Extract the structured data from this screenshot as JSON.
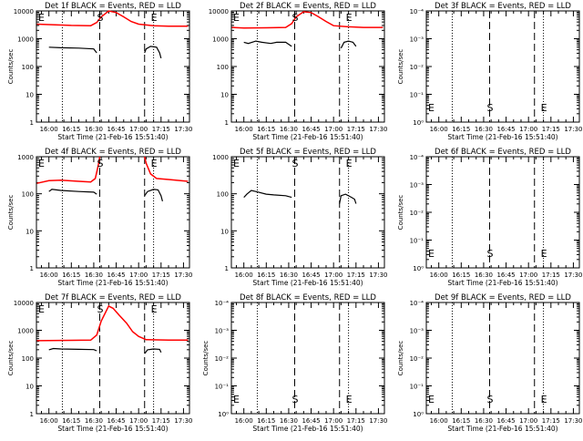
{
  "chart_data": [
    {
      "type": "line",
      "title": "Det 1f BLACK = Events, RED = LLD",
      "ylabel": "Counts/sec",
      "xlabel": "Start Time (21-Feb-16 15:51:40)",
      "x_ticks": [
        "16:00",
        "16:15",
        "16:30",
        "16:45",
        "17:00",
        "17:15",
        "17:30"
      ],
      "xlim": [
        "15:51:40",
        "17:34"
      ],
      "yscale": "log",
      "ylim": [
        1,
        15000
      ],
      "y_ticks": [
        "1",
        "10",
        "100",
        "1000",
        "10000"
      ],
      "markers": [
        {
          "label": "E",
          "at": "15:51:40"
        },
        {
          "label": "S",
          "at": "16:34"
        },
        {
          "label": "E",
          "at": "17:10"
        }
      ],
      "dashed_lines": [
        "16:34",
        "17:04"
      ],
      "dotted_lines": [
        "16:09",
        "17:10"
      ],
      "series": [
        {
          "color": "#ff0000",
          "points": [
            [
              "15:52",
              4800
            ],
            [
              "16:00",
              4600
            ],
            [
              "16:15",
              4300
            ],
            [
              "16:28",
              4200
            ],
            [
              "16:32",
              5500
            ],
            [
              "16:35",
              9000
            ],
            [
              "16:40",
              15000
            ],
            [
              "16:45",
              13000
            ],
            [
              "16:50",
              9000
            ],
            [
              "16:55",
              6000
            ],
            [
              "17:00",
              4800
            ],
            [
              "17:10",
              4200
            ],
            [
              "17:20",
              4000
            ],
            [
              "17:33",
              4000
            ]
          ]
        },
        {
          "color": "#000000",
          "segments": [
            [
              [
                "16:00",
                650
              ],
              [
                "16:08",
                620
              ],
              [
                "16:20",
                600
              ],
              [
                "16:30",
                560
              ],
              [
                "16:32",
                400
              ]
            ],
            [
              [
                "17:04",
                400
              ],
              [
                "17:05",
                560
              ],
              [
                "17:08",
                700
              ],
              [
                "17:12",
                650
              ],
              [
                "17:14",
                400
              ],
              [
                "17:15",
                250
              ]
            ]
          ]
        }
      ]
    },
    {
      "type": "line",
      "title": "Det 2f BLACK = Events, RED = LLD",
      "ylabel": "",
      "xlabel": "Start Time (21-Feb-16 15:51:40)",
      "x_ticks": [
        "16:00",
        "16:15",
        "16:30",
        "16:45",
        "17:00",
        "17:15",
        "17:30"
      ],
      "xlim": [
        "15:51:40",
        "17:34"
      ],
      "yscale": "log",
      "ylim": [
        1,
        15000
      ],
      "y_ticks": [
        "1",
        "10",
        "100",
        "1000",
        "10000"
      ],
      "markers": [
        {
          "label": "E",
          "at": "15:51:40"
        },
        {
          "label": "S",
          "at": "16:34"
        },
        {
          "label": "E",
          "at": "17:10"
        }
      ],
      "dashed_lines": [
        "16:34",
        "17:04"
      ],
      "dotted_lines": [
        "16:09",
        "17:10"
      ],
      "series": [
        {
          "color": "#ff0000",
          "points": [
            [
              "15:52",
              3600
            ],
            [
              "16:00",
              3400
            ],
            [
              "16:15",
              3500
            ],
            [
              "16:28",
              3600
            ],
            [
              "16:32",
              5000
            ],
            [
              "16:35",
              9000
            ],
            [
              "16:40",
              14000
            ],
            [
              "16:45",
              13000
            ],
            [
              "16:50",
              9000
            ],
            [
              "16:55",
              6000
            ],
            [
              "17:00",
              4200
            ],
            [
              "17:10",
              3800
            ],
            [
              "17:20",
              3600
            ],
            [
              "17:33",
              3600
            ]
          ]
        },
        {
          "color": "#000000",
          "segments": [
            [
              [
                "16:00",
                1000
              ],
              [
                "16:03",
                900
              ],
              [
                "16:08",
                1100
              ],
              [
                "16:12",
                1000
              ],
              [
                "16:18",
                900
              ],
              [
                "16:22",
                1000
              ],
              [
                "16:28",
                1000
              ],
              [
                "16:32",
                700
              ]
            ],
            [
              [
                "17:05",
                600
              ],
              [
                "17:07",
                1000
              ],
              [
                "17:10",
                1100
              ],
              [
                "17:13",
                1000
              ],
              [
                "17:15",
                700
              ]
            ]
          ]
        }
      ]
    },
    {
      "type": "line",
      "title": "Det 3f BLACK = Events, RED = LLD",
      "ylabel": "Counts/sec",
      "xlabel": "Start Time (21-Feb-16 15:51:40)",
      "x_ticks": [
        "16:00",
        "16:15",
        "16:30",
        "16:45",
        "17:00",
        "17:15",
        "17:30"
      ],
      "xlim": [
        "15:51:40",
        "17:34"
      ],
      "yscale": "log",
      "ylim": [
        1,
        0.0001
      ],
      "y_ticks": [
        "10⁰",
        "10⁻¹",
        "10⁻²",
        "10⁻³",
        "10⁻⁴"
      ],
      "markers": [
        {
          "label": "E",
          "at": "15:51:40"
        },
        {
          "label": "S",
          "at": "16:34"
        },
        {
          "label": "E",
          "at": "17:10"
        }
      ],
      "dashed_lines": [
        "16:34",
        "17:04"
      ],
      "dotted_lines": [
        "16:09",
        "17:10"
      ],
      "series": []
    },
    {
      "type": "line",
      "title": "Det 4f BLACK = Events, RED = LLD",
      "ylabel": "Counts/sec",
      "xlabel": "Start Time (21-Feb-16 15:51:40)",
      "x_ticks": [
        "16:00",
        "16:15",
        "16:30",
        "16:45",
        "17:00",
        "17:15",
        "17:30"
      ],
      "xlim": [
        "15:51:40",
        "17:34"
      ],
      "yscale": "log",
      "ylim": [
        1,
        1200
      ],
      "y_ticks": [
        "1",
        "10",
        "100",
        "1000"
      ],
      "markers": [
        {
          "label": "E",
          "at": "15:51:40"
        },
        {
          "label": "S",
          "at": "16:34"
        },
        {
          "label": "E",
          "at": "17:10"
        }
      ],
      "dashed_lines": [
        "16:34",
        "17:04"
      ],
      "dotted_lines": [
        "16:09",
        "17:10"
      ],
      "series": [
        {
          "color": "#ff0000",
          "points": [
            [
              "15:52",
              220
            ],
            [
              "16:00",
              260
            ],
            [
              "16:08",
              270
            ],
            [
              "16:20",
              250
            ],
            [
              "16:28",
              240
            ],
            [
              "16:31",
              300
            ],
            [
              "16:33",
              700
            ],
            [
              "16:34",
              1200
            ]
          ]
        },
        {
          "color": "#ff0000",
          "points": [
            [
              "17:04",
              1200
            ],
            [
              "17:05",
              800
            ],
            [
              "17:08",
              400
            ],
            [
              "17:12",
              300
            ],
            [
              "17:20",
              280
            ],
            [
              "17:33",
              250
            ]
          ]
        },
        {
          "color": "#000000",
          "segments": [
            [
              [
                "16:00",
                130
              ],
              [
                "16:02",
                150
              ],
              [
                "16:08",
                140
              ],
              [
                "16:20",
                130
              ],
              [
                "16:30",
                125
              ],
              [
                "16:32",
                110
              ]
            ],
            [
              [
                "17:04",
                100
              ],
              [
                "17:06",
                130
              ],
              [
                "17:10",
                150
              ],
              [
                "17:13",
                145
              ],
              [
                "17:15",
                100
              ],
              [
                "17:16",
                70
              ]
            ]
          ]
        }
      ]
    },
    {
      "type": "line",
      "title": "Det 5f BLACK = Events, RED = LLD",
      "ylabel": "",
      "xlabel": "Start Time (21-Feb-16 15:51:40)",
      "x_ticks": [
        "16:00",
        "16:15",
        "16:30",
        "16:45",
        "17:00",
        "17:15",
        "17:30"
      ],
      "xlim": [
        "15:51:40",
        "17:34"
      ],
      "yscale": "log",
      "ylim": [
        1,
        1200
      ],
      "y_ticks": [
        "1",
        "10",
        "100",
        "1000"
      ],
      "markers": [
        {
          "label": "E",
          "at": "15:51:40"
        },
        {
          "label": "S",
          "at": "16:34"
        },
        {
          "label": "E",
          "at": "17:10"
        }
      ],
      "dashed_lines": [
        "16:34",
        "17:04"
      ],
      "dotted_lines": [
        "16:09",
        "17:10"
      ],
      "series": [
        {
          "color": "#000000",
          "segments": [
            [
              [
                "16:00",
                90
              ],
              [
                "16:02",
                110
              ],
              [
                "16:05",
                140
              ],
              [
                "16:08",
                130
              ],
              [
                "16:15",
                110
              ],
              [
                "16:20",
                105
              ],
              [
                "16:28",
                100
              ],
              [
                "16:32",
                90
              ]
            ],
            [
              [
                "17:04",
                60
              ],
              [
                "17:05",
                100
              ],
              [
                "17:08",
                110
              ],
              [
                "17:12",
                90
              ],
              [
                "17:14",
                80
              ],
              [
                "17:15",
                60
              ]
            ]
          ]
        }
      ]
    },
    {
      "type": "line",
      "title": "Det 6f BLACK = Events, RED = LLD",
      "ylabel": "Counts/sec",
      "xlabel": "Start Time (21-Feb-16 15:51:40)",
      "x_ticks": [
        "16:00",
        "16:15",
        "16:30",
        "16:45",
        "17:00",
        "17:15",
        "17:30"
      ],
      "xlim": [
        "15:51:40",
        "17:34"
      ],
      "yscale": "log",
      "ylim": [
        1,
        0.0001
      ],
      "y_ticks": [
        "10⁰",
        "10⁻¹",
        "10⁻²",
        "10⁻³",
        "10⁻⁴"
      ],
      "markers": [
        {
          "label": "E",
          "at": "15:51:40"
        },
        {
          "label": "S",
          "at": "16:34"
        },
        {
          "label": "E",
          "at": "17:10"
        }
      ],
      "dashed_lines": [
        "16:34",
        "17:04"
      ],
      "dotted_lines": [
        "16:09",
        "17:10"
      ],
      "series": []
    },
    {
      "type": "line",
      "title": "Det 7f BLACK = Events, RED = LLD",
      "ylabel": "Counts/sec",
      "xlabel": "Start Time (21-Feb-16 15:51:40)",
      "x_ticks": [
        "16:00",
        "16:15",
        "16:30",
        "16:45",
        "17:00",
        "17:15",
        "17:30"
      ],
      "xlim": [
        "15:51:40",
        "17:34"
      ],
      "yscale": "log",
      "ylim": [
        1,
        15000
      ],
      "y_ticks": [
        "1",
        "10",
        "100",
        "1000",
        "10000"
      ],
      "markers": [
        {
          "label": "E",
          "at": "15:51:40"
        },
        {
          "label": "S",
          "at": "16:34"
        },
        {
          "label": "E",
          "at": "17:10"
        }
      ],
      "dashed_lines": [
        "16:34",
        "17:04"
      ],
      "dotted_lines": [
        "16:09",
        "17:10"
      ],
      "series": [
        {
          "color": "#ff0000",
          "points": [
            [
              "15:52",
              550
            ],
            [
              "16:00",
              560
            ],
            [
              "16:15",
              570
            ],
            [
              "16:28",
              580
            ],
            [
              "16:32",
              900
            ],
            [
              "16:35",
              3000
            ],
            [
              "16:40",
              11000
            ],
            [
              "16:43",
              9000
            ],
            [
              "16:47",
              5000
            ],
            [
              "16:52",
              2500
            ],
            [
              "16:56",
              1200
            ],
            [
              "17:00",
              800
            ],
            [
              "17:05",
              600
            ],
            [
              "17:20",
              580
            ],
            [
              "17:33",
              580
            ]
          ]
        },
        {
          "color": "#000000",
          "segments": [
            [
              [
                "16:00",
                250
              ],
              [
                "16:03",
                280
              ],
              [
                "16:08",
                270
              ],
              [
                "16:20",
                260
              ],
              [
                "16:30",
                255
              ],
              [
                "16:32",
                230
              ]
            ],
            [
              [
                "17:04",
                180
              ],
              [
                "17:06",
                250
              ],
              [
                "17:10",
                270
              ],
              [
                "17:14",
                260
              ],
              [
                "17:15",
                200
              ]
            ]
          ]
        }
      ]
    },
    {
      "type": "line",
      "title": "Det 8f BLACK = Events, RED = LLD",
      "ylabel": "Counts/sec",
      "xlabel": "Start Time (21-Feb-16 15:51:40)",
      "x_ticks": [
        "16:00",
        "16:15",
        "16:30",
        "16:45",
        "17:00",
        "17:15",
        "17:30"
      ],
      "xlim": [
        "15:51:40",
        "17:34"
      ],
      "yscale": "log",
      "ylim": [
        1,
        0.0001
      ],
      "y_ticks": [
        "10⁰",
        "10⁻¹",
        "10⁻²",
        "10⁻³",
        "10⁻⁴"
      ],
      "markers": [
        {
          "label": "E",
          "at": "15:51:40"
        },
        {
          "label": "S",
          "at": "16:34"
        },
        {
          "label": "E",
          "at": "17:10"
        }
      ],
      "dashed_lines": [
        "16:34",
        "17:04"
      ],
      "dotted_lines": [
        "16:09",
        "17:10"
      ],
      "series": []
    },
    {
      "type": "line",
      "title": "Det 9f BLACK = Events, RED = LLD",
      "ylabel": "Counts/sec",
      "xlabel": "Start Time (21-Feb-16 15:51:40)",
      "x_ticks": [
        "16:00",
        "16:15",
        "16:30",
        "16:45",
        "17:00",
        "17:15",
        "17:30"
      ],
      "xlim": [
        "15:51:40",
        "17:34"
      ],
      "yscale": "log",
      "ylim": [
        1,
        0.0001
      ],
      "y_ticks": [
        "10⁰",
        "10⁻¹",
        "10⁻²",
        "10⁻³",
        "10⁻⁴"
      ],
      "markers": [
        {
          "label": "E",
          "at": "15:51:40"
        },
        {
          "label": "S",
          "at": "16:34"
        },
        {
          "label": "E",
          "at": "17:10"
        }
      ],
      "dashed_lines": [
        "16:34",
        "17:04"
      ],
      "dotted_lines": [
        "16:09",
        "17:10"
      ],
      "series": []
    }
  ]
}
